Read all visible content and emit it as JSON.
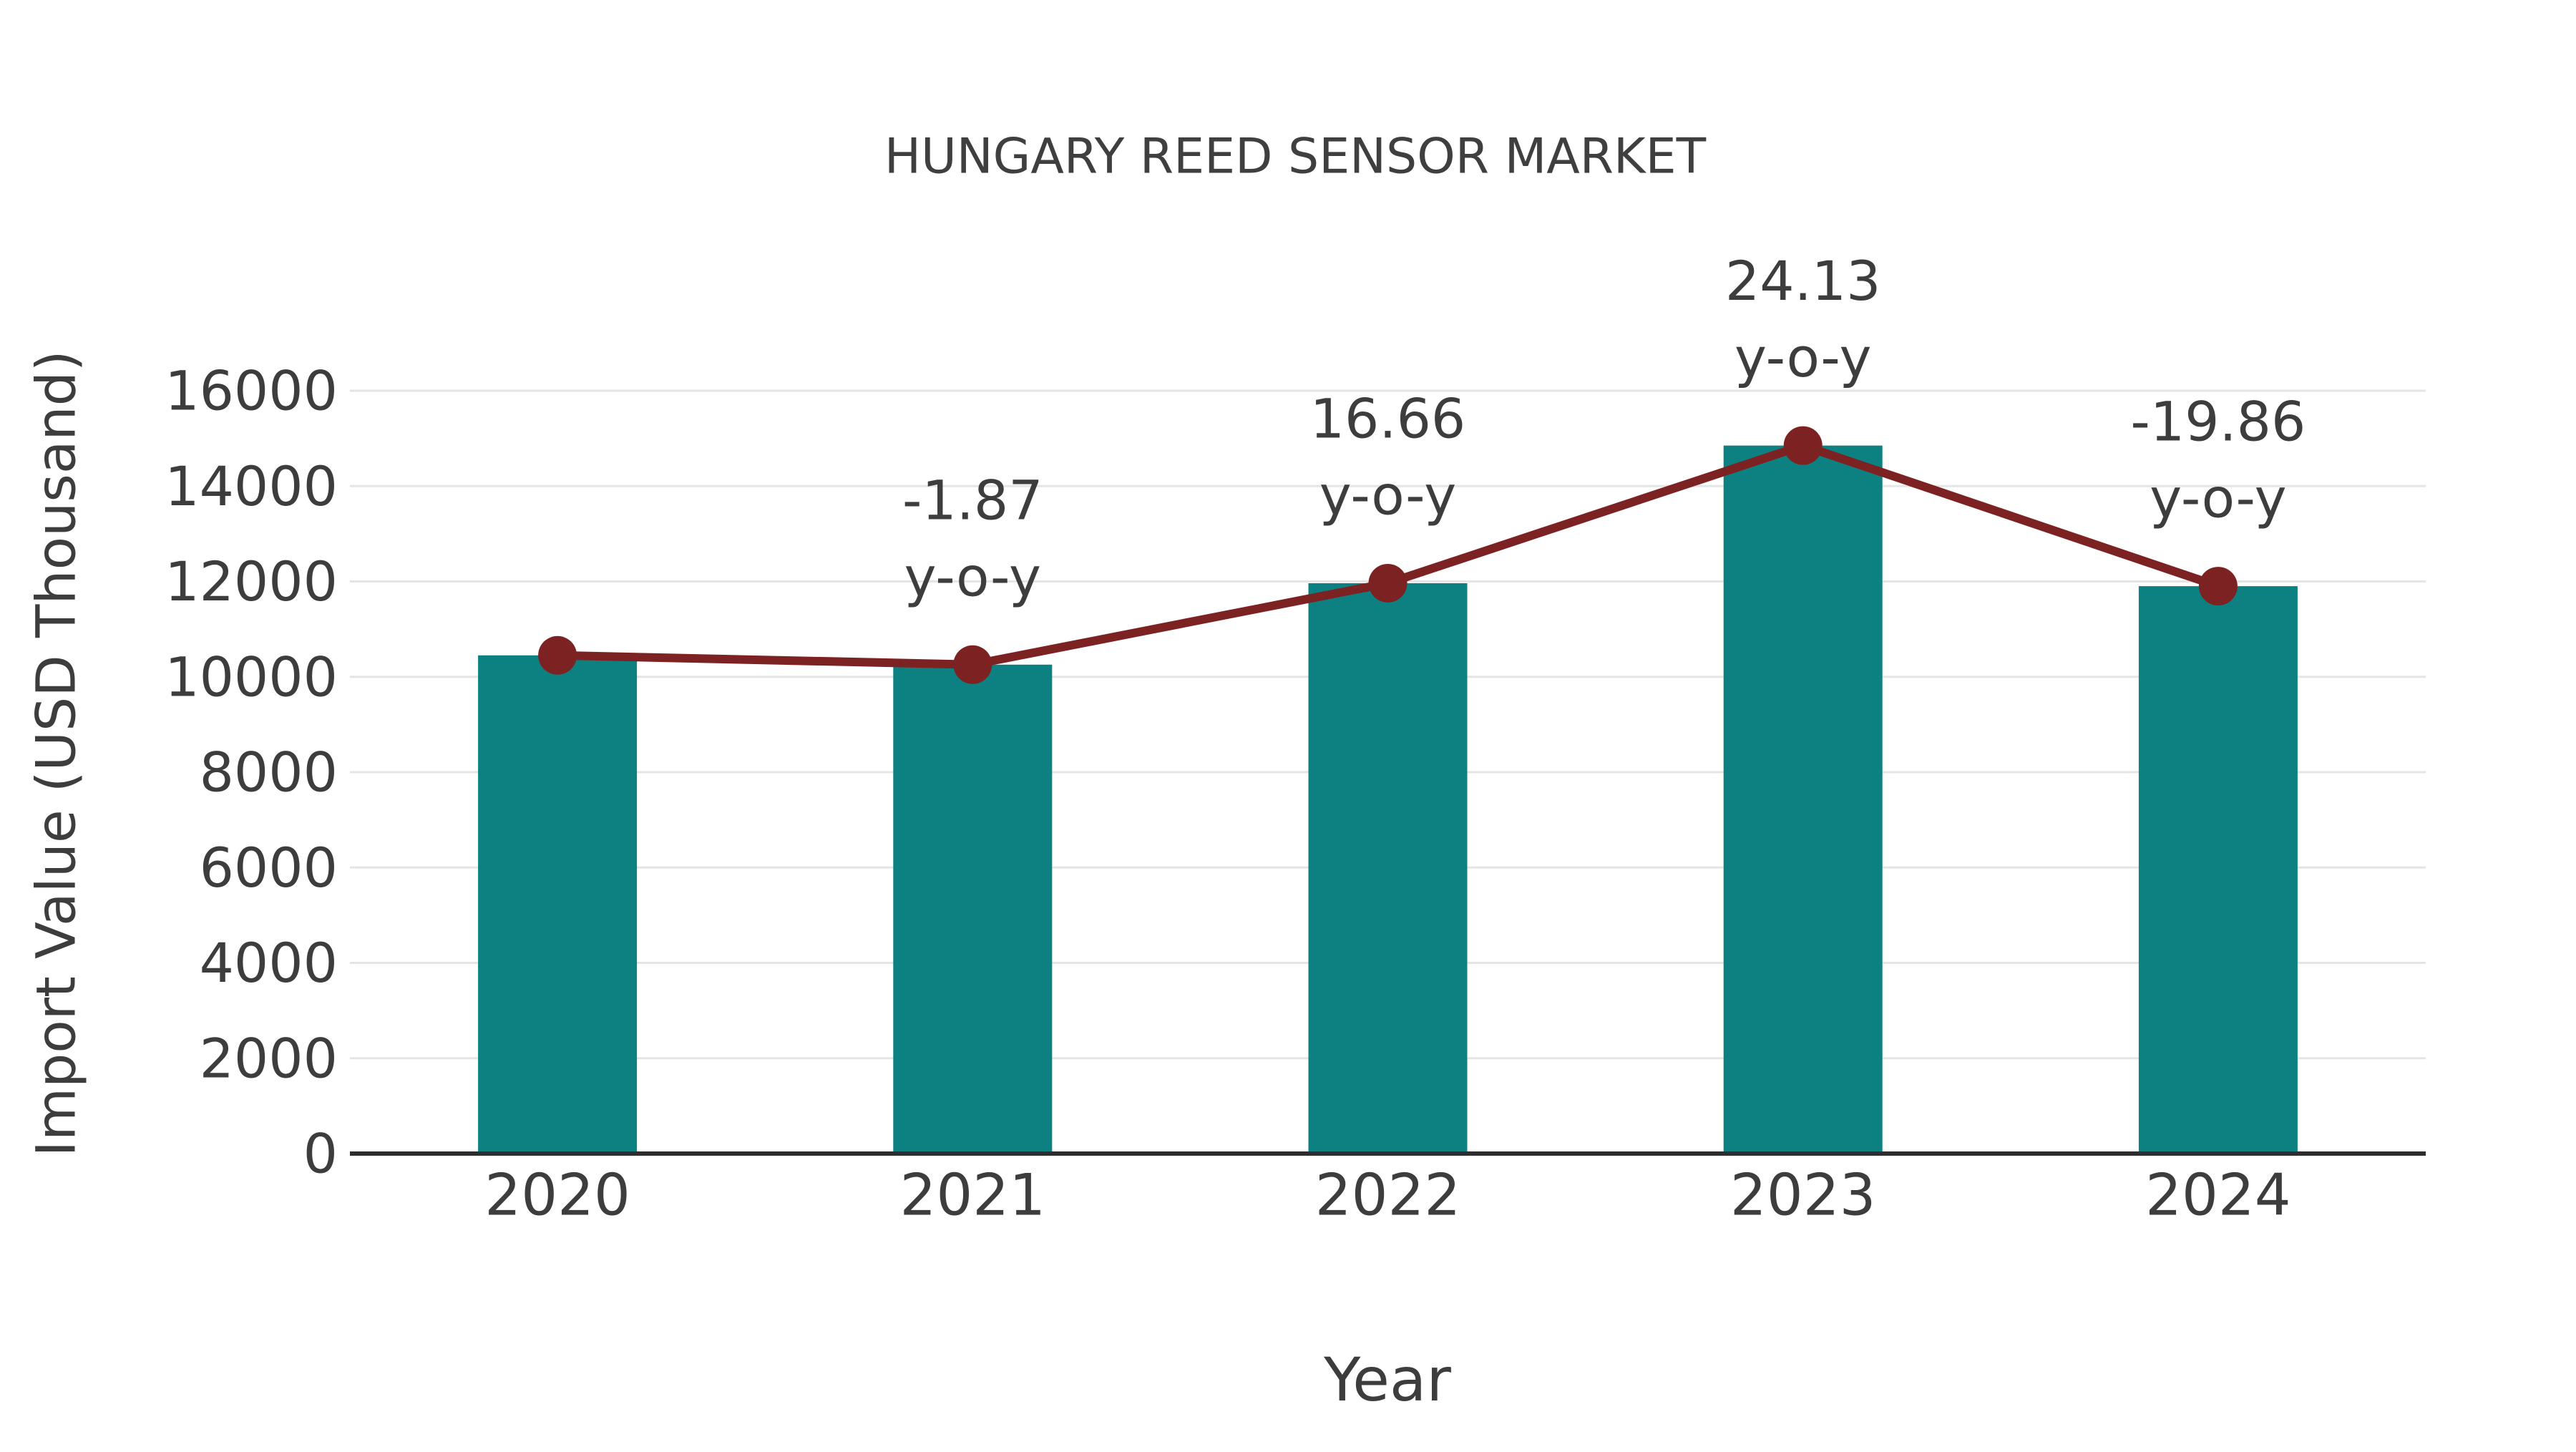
{
  "title": "HUNGARY REED SENSOR MARKET",
  "chart_data": {
    "type": "bar",
    "title": "HUNGARY REED SENSOR MARKET",
    "xlabel": "Year",
    "ylabel": "Import Value (USD Thousand)",
    "categories": [
      "2020",
      "2021",
      "2022",
      "2023",
      "2024"
    ],
    "values": [
      10450,
      10255,
      11963,
      14850,
      11901
    ],
    "line_overlay": {
      "name": "trend-line",
      "follows": "values",
      "color": "#7d2222"
    },
    "yoy_annotations": [
      "",
      "-1.87",
      "16.66",
      "24.13",
      "-19.86"
    ],
    "annotation_suffix": "y-o-y",
    "yticks": [
      0,
      2000,
      4000,
      6000,
      8000,
      10000,
      12000,
      14000,
      16000
    ],
    "ylim": [
      0,
      16800
    ],
    "grid": true,
    "legend": "none",
    "colors": {
      "bar": "#0d8181",
      "line": "#7d2222",
      "marker": "#7d2222",
      "grid": "#e5e5e5",
      "axis": "#2e2e2e",
      "text": "#3d3d3d"
    }
  }
}
